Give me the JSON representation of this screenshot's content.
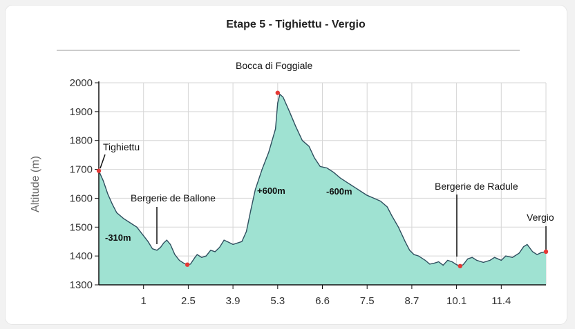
{
  "chart_data": {
    "type": "area",
    "title": "Etape 5 - Tighiettu - Vergio",
    "ylabel": "Altitude (m)",
    "xlabel": "",
    "ylim": [
      1300,
      2000
    ],
    "yticks": [
      1300,
      1400,
      1500,
      1600,
      1700,
      1800,
      1900,
      2000
    ],
    "xticks": [
      "1",
      "2.5",
      "3.9",
      "5.3",
      "6.6",
      "7.5",
      "8.7",
      "10.1",
      "11.4"
    ],
    "xlim_index": [
      0,
      10
    ],
    "grid": true,
    "fill_color": "#9fe2d2",
    "line_color": "#2f4f5f",
    "profile": [
      [
        0.0,
        1695
      ],
      [
        0.1,
        1660
      ],
      [
        0.2,
        1615
      ],
      [
        0.3,
        1580
      ],
      [
        0.4,
        1550
      ],
      [
        0.55,
        1530
      ],
      [
        0.7,
        1515
      ],
      [
        0.85,
        1500
      ],
      [
        1.0,
        1470
      ],
      [
        1.1,
        1450
      ],
      [
        1.2,
        1425
      ],
      [
        1.3,
        1420
      ],
      [
        1.38,
        1430
      ],
      [
        1.45,
        1445
      ],
      [
        1.52,
        1455
      ],
      [
        1.6,
        1440
      ],
      [
        1.7,
        1405
      ],
      [
        1.8,
        1385
      ],
      [
        1.9,
        1375
      ],
      [
        1.98,
        1370
      ],
      [
        2.05,
        1372
      ],
      [
        2.15,
        1395
      ],
      [
        2.2,
        1405
      ],
      [
        2.3,
        1395
      ],
      [
        2.4,
        1400
      ],
      [
        2.5,
        1420
      ],
      [
        2.6,
        1415
      ],
      [
        2.7,
        1430
      ],
      [
        2.8,
        1455
      ],
      [
        2.9,
        1448
      ],
      [
        3.0,
        1440
      ],
      [
        3.1,
        1445
      ],
      [
        3.2,
        1450
      ],
      [
        3.3,
        1485
      ],
      [
        3.4,
        1560
      ],
      [
        3.5,
        1630
      ],
      [
        3.65,
        1700
      ],
      [
        3.8,
        1760
      ],
      [
        3.95,
        1840
      ],
      [
        4.0,
        1930
      ],
      [
        4.05,
        1960
      ],
      [
        4.12,
        1950
      ],
      [
        4.25,
        1905
      ],
      [
        4.4,
        1850
      ],
      [
        4.55,
        1800
      ],
      [
        4.7,
        1780
      ],
      [
        4.82,
        1740
      ],
      [
        4.95,
        1710
      ],
      [
        5.1,
        1705
      ],
      [
        5.25,
        1690
      ],
      [
        5.4,
        1670
      ],
      [
        5.55,
        1655
      ],
      [
        5.7,
        1640
      ],
      [
        5.85,
        1625
      ],
      [
        6.0,
        1610
      ],
      [
        6.15,
        1600
      ],
      [
        6.3,
        1590
      ],
      [
        6.45,
        1570
      ],
      [
        6.55,
        1540
      ],
      [
        6.7,
        1500
      ],
      [
        6.85,
        1450
      ],
      [
        6.95,
        1420
      ],
      [
        7.05,
        1405
      ],
      [
        7.15,
        1400
      ],
      [
        7.3,
        1385
      ],
      [
        7.4,
        1372
      ],
      [
        7.5,
        1375
      ],
      [
        7.6,
        1380
      ],
      [
        7.7,
        1368
      ],
      [
        7.8,
        1385
      ],
      [
        7.9,
        1380
      ],
      [
        8.0,
        1370
      ],
      [
        8.08,
        1365
      ],
      [
        8.15,
        1370
      ],
      [
        8.25,
        1390
      ],
      [
        8.35,
        1395
      ],
      [
        8.45,
        1385
      ],
      [
        8.6,
        1378
      ],
      [
        8.75,
        1385
      ],
      [
        8.85,
        1395
      ],
      [
        9.0,
        1385
      ],
      [
        9.1,
        1400
      ],
      [
        9.25,
        1395
      ],
      [
        9.4,
        1410
      ],
      [
        9.5,
        1432
      ],
      [
        9.58,
        1440
      ],
      [
        9.7,
        1415
      ],
      [
        9.8,
        1405
      ],
      [
        9.9,
        1412
      ],
      [
        10.0,
        1415
      ]
    ],
    "waypoints": [
      {
        "name": "Tighiettu",
        "x": 0.0,
        "y": 1695
      },
      {
        "name": "Bocca di Foggiale",
        "x": 4.0,
        "y": 1965
      },
      {
        "name": "",
        "x": 1.98,
        "y": 1370
      },
      {
        "name": "",
        "x": 8.08,
        "y": 1365
      },
      {
        "name": "Vergio",
        "x": 10.0,
        "y": 1415
      }
    ],
    "annotations": [
      {
        "text": "Tighiettu",
        "kind": "name"
      },
      {
        "text": "Bergerie de Ballone",
        "kind": "name"
      },
      {
        "text": "Bocca di Foggiale",
        "kind": "name"
      },
      {
        "text": "Bergerie de Radule",
        "kind": "name"
      },
      {
        "text": "Vergio",
        "kind": "name"
      },
      {
        "text": "-310m",
        "kind": "delta"
      },
      {
        "text": "+600m",
        "kind": "delta"
      },
      {
        "text": "-600m",
        "kind": "delta"
      }
    ]
  }
}
